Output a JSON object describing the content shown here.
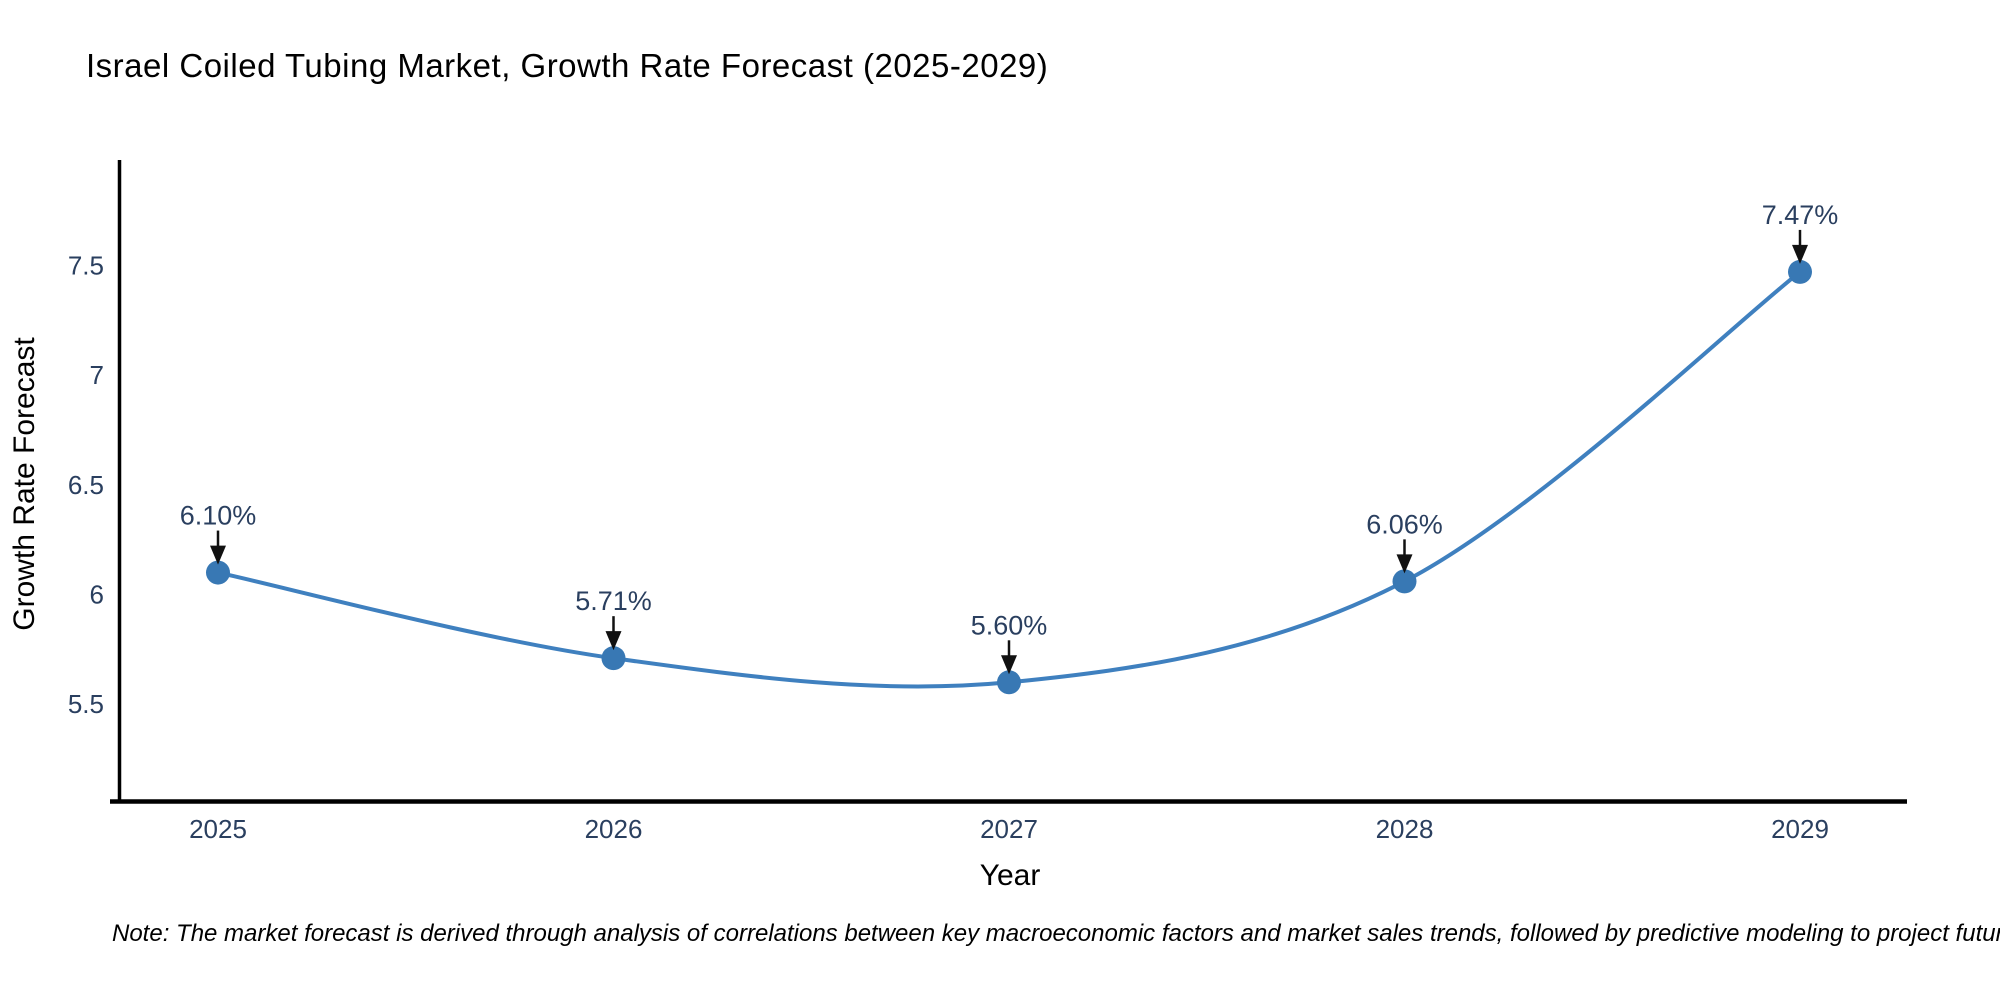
{
  "page": {
    "background": "#ffffff"
  },
  "footnote": "Note: The market forecast is derived through analysis of correlations between key macroeconomic factors and market sales trends, followed by predictive modeling to project future sales",
  "chart_data": {
    "type": "line",
    "title": "Israel Coiled Tubing Market, Growth Rate Forecast (2025-2029)",
    "xlabel": "Year",
    "ylabel": "Growth Rate Forecast",
    "categories": [
      "2025",
      "2026",
      "2027",
      "2028",
      "2029"
    ],
    "series": [
      {
        "name": "Growth Rate Forecast",
        "values": [
          6.1,
          5.71,
          5.6,
          6.06,
          7.47
        ]
      }
    ],
    "point_labels": [
      "6.10%",
      "5.71%",
      "5.60%",
      "6.06%",
      "7.47%"
    ],
    "yticks": [
      5.5,
      6,
      6.5,
      7,
      7.5
    ],
    "ytick_labels": [
      "5.5",
      "6",
      "6.5",
      "7",
      "7.5"
    ],
    "ylim": [
      5.05,
      7.98
    ],
    "line_shape": "spline",
    "grid": false,
    "legend": "none",
    "markers": true,
    "annotation_style": "text-with-down-arrow",
    "colors": {
      "line": "#3f80bf",
      "marker": "#3878b4",
      "arrow": "#111111",
      "text": "#2a3f5f",
      "axis_line": "#000000",
      "note_text": "#000000"
    }
  }
}
